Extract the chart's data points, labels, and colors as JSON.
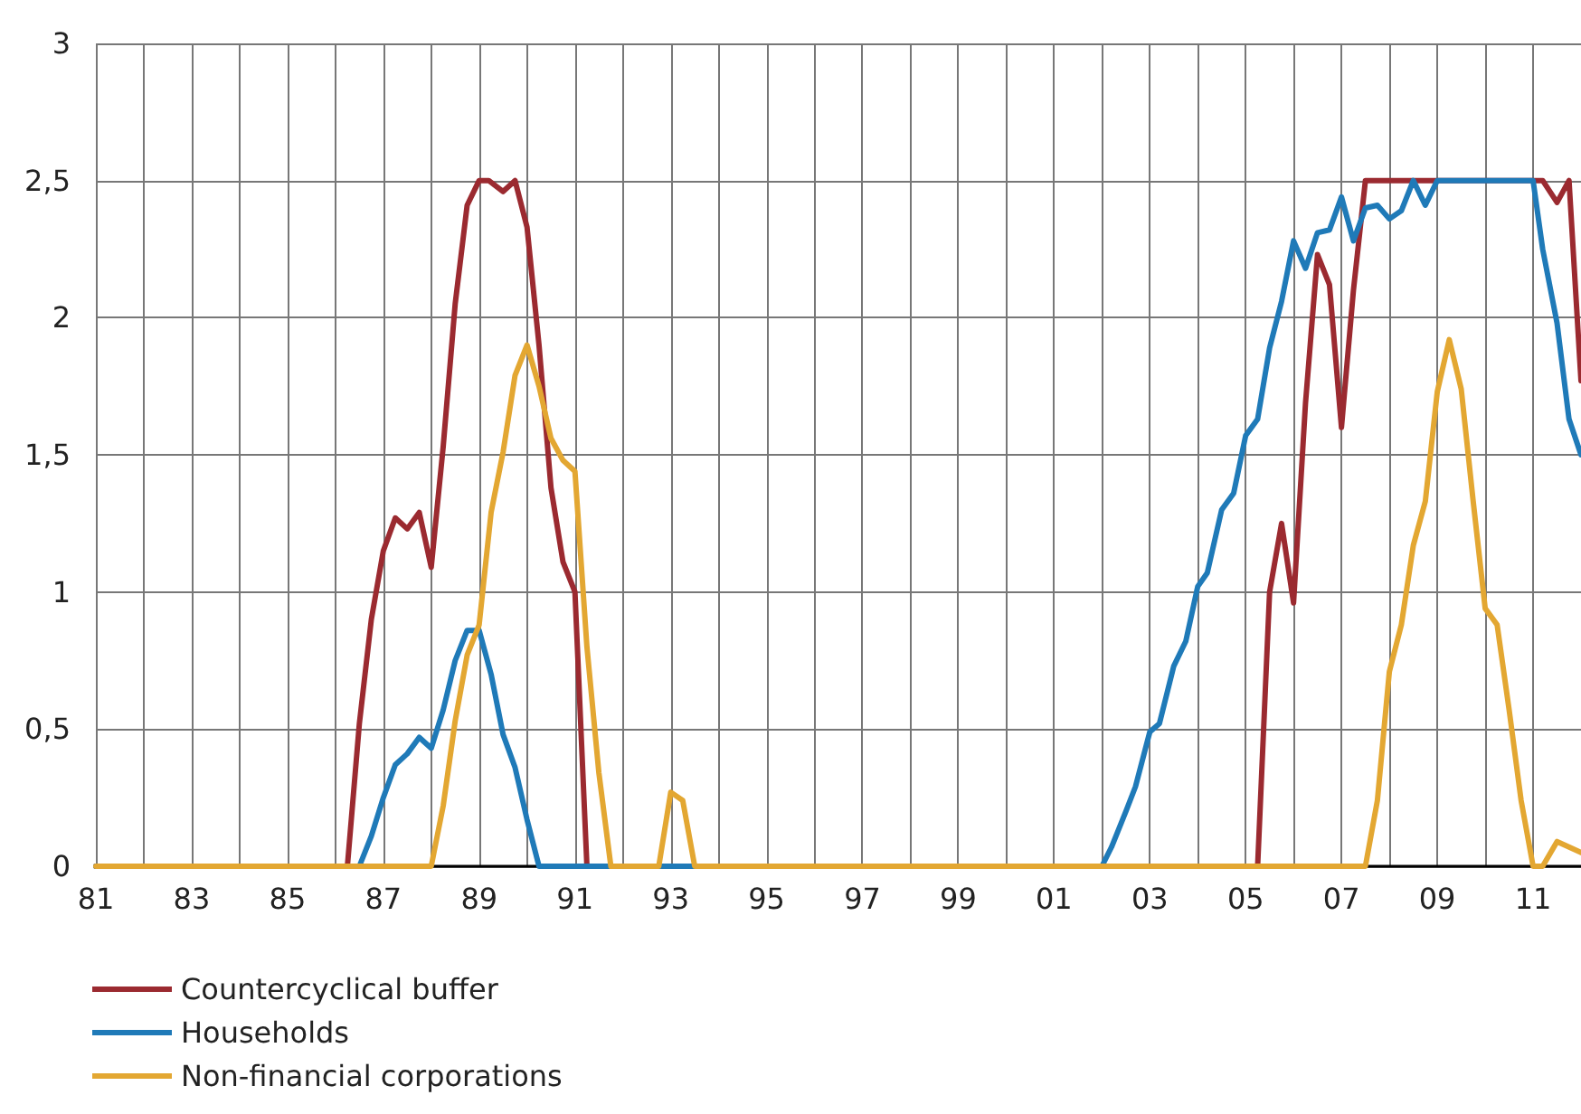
{
  "chart_data": {
    "type": "line",
    "legend": "bottom",
    "grid": true,
    "marker": "none",
    "line_style": "solid",
    "xlim": [
      1981,
      2012
    ],
    "xticks": [
      {
        "value": 1981,
        "label": "81"
      },
      {
        "value": 1982,
        "label": null
      },
      {
        "value": 1983,
        "label": "83"
      },
      {
        "value": 1984,
        "label": null
      },
      {
        "value": 1985,
        "label": "85"
      },
      {
        "value": 1986,
        "label": null
      },
      {
        "value": 1987,
        "label": "87"
      },
      {
        "value": 1988,
        "label": null
      },
      {
        "value": 1989,
        "label": "89"
      },
      {
        "value": 1990,
        "label": null
      },
      {
        "value": 1991,
        "label": "91"
      },
      {
        "value": 1992,
        "label": null
      },
      {
        "value": 1993,
        "label": "93"
      },
      {
        "value": 1994,
        "label": null
      },
      {
        "value": 1995,
        "label": "95"
      },
      {
        "value": 1996,
        "label": null
      },
      {
        "value": 1997,
        "label": "97"
      },
      {
        "value": 1998,
        "label": null
      },
      {
        "value": 1999,
        "label": "99"
      },
      {
        "value": 2000,
        "label": null
      },
      {
        "value": 2001,
        "label": "01"
      },
      {
        "value": 2002,
        "label": null
      },
      {
        "value": 2003,
        "label": "03"
      },
      {
        "value": 2004,
        "label": null
      },
      {
        "value": 2005,
        "label": "05"
      },
      {
        "value": 2006,
        "label": null
      },
      {
        "value": 2007,
        "label": "07"
      },
      {
        "value": 2008,
        "label": null
      },
      {
        "value": 2009,
        "label": "09"
      },
      {
        "value": 2010,
        "label": null
      },
      {
        "value": 2011,
        "label": "11"
      }
    ],
    "ylim": [
      0,
      3
    ],
    "yticks": [
      0,
      {
        "value": 0.5,
        "label": "0,5"
      },
      1,
      {
        "value": 1.5,
        "label": "1,5"
      },
      2,
      {
        "value": 2.5,
        "label": "2,5"
      },
      3
    ],
    "series": [
      {
        "name": "Countercyclical buffer",
        "color": "#9b2a30",
        "x": [
          1981,
          1986.25,
          1986.5,
          1986.75,
          1987,
          1987.25,
          1987.5,
          1987.75,
          1988,
          1988.25,
          1988.5,
          1988.75,
          1989,
          1989.2,
          1989.5,
          1989.75,
          1990,
          1990.25,
          1990.5,
          1990.75,
          1991,
          1991.25,
          2005.25,
          2005.5,
          2005.75,
          2006,
          2006.25,
          2006.5,
          2006.75,
          2007,
          2007.25,
          2007.5,
          2011.2,
          2011.5,
          2011.75,
          2012
        ],
        "values": [
          0,
          0,
          0.52,
          0.9,
          1.15,
          1.27,
          1.23,
          1.29,
          1.09,
          1.53,
          2.05,
          2.41,
          2.5,
          2.5,
          2.46,
          2.5,
          2.33,
          1.9,
          1.38,
          1.11,
          1,
          0,
          0,
          1,
          1.25,
          0.96,
          1.69,
          2.23,
          2.12,
          1.6,
          2.1,
          2.5,
          2.5,
          2.42,
          2.5,
          1.77
        ]
      },
      {
        "name": "Households",
        "color": "#1f7ab8",
        "x": [
          1981,
          1986.5,
          1986.75,
          1987,
          1987.25,
          1987.5,
          1987.75,
          1988,
          1988.25,
          1988.5,
          1988.75,
          1989,
          1989.25,
          1989.5,
          1989.75,
          1990,
          1990.25,
          2002,
          2002.2,
          2002.5,
          2002.7,
          2003,
          2003.2,
          2003.5,
          2003.75,
          2004,
          2004.2,
          2004.5,
          2004.75,
          2005,
          2005.25,
          2005.5,
          2005.75,
          2006,
          2006.25,
          2006.5,
          2006.75,
          2007,
          2007.25,
          2007.5,
          2007.75,
          2008,
          2008.25,
          2008.5,
          2008.75,
          2009,
          2011,
          2011.2,
          2011.5,
          2011.75,
          2012
        ],
        "values": [
          0,
          0,
          0.11,
          0.25,
          0.37,
          0.41,
          0.47,
          0.43,
          0.57,
          0.75,
          0.86,
          0.86,
          0.7,
          0.48,
          0.36,
          0.17,
          0,
          0,
          0.07,
          0.2,
          0.29,
          0.49,
          0.52,
          0.73,
          0.82,
          1.02,
          1.07,
          1.3,
          1.36,
          1.57,
          1.63,
          1.89,
          2.06,
          2.28,
          2.18,
          2.31,
          2.32,
          2.44,
          2.28,
          2.4,
          2.41,
          2.36,
          2.39,
          2.5,
          2.41,
          2.5,
          2.5,
          2.25,
          1.98,
          1.63,
          1.5
        ]
      },
      {
        "name": "Non-financial corporations",
        "color": "#e3a732",
        "x": [
          1981,
          1988,
          1988.25,
          1988.5,
          1988.75,
          1989,
          1989.25,
          1989.5,
          1989.75,
          1990,
          1990.25,
          1990.5,
          1990.75,
          1991,
          1991.25,
          1991.5,
          1991.75,
          1992.75,
          1993,
          1993.25,
          1993.5,
          2007.5,
          2007.75,
          2008,
          2008.25,
          2008.5,
          2008.75,
          2009,
          2009.25,
          2009.5,
          2009.75,
          2010,
          2010.25,
          2010.5,
          2010.75,
          2011,
          2011.2,
          2011.5,
          2011.75,
          2012
        ],
        "values": [
          0,
          0,
          0.22,
          0.53,
          0.77,
          0.88,
          1.29,
          1.51,
          1.79,
          1.9,
          1.75,
          1.56,
          1.48,
          1.44,
          0.8,
          0.34,
          0,
          0,
          0.27,
          0.24,
          0,
          0,
          0.24,
          0.71,
          0.88,
          1.17,
          1.33,
          1.73,
          1.92,
          1.74,
          1.33,
          0.94,
          0.88,
          0.57,
          0.24,
          0,
          0,
          0.09,
          0.07,
          0.05
        ]
      }
    ]
  }
}
